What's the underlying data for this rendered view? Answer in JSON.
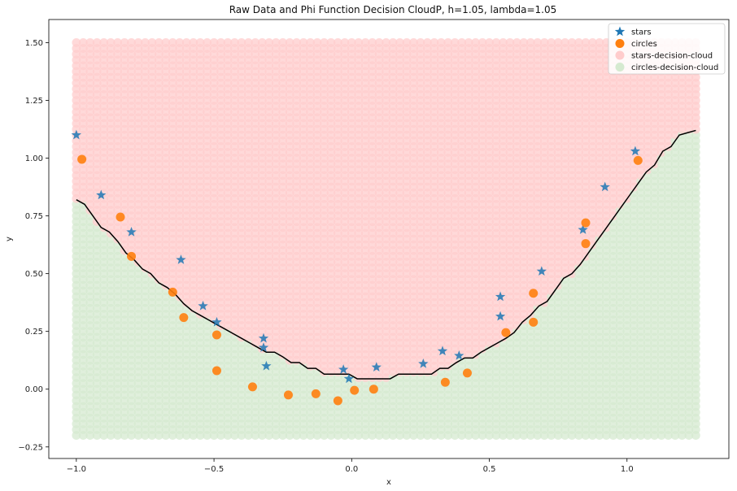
{
  "chart_data": {
    "type": "scatter",
    "title": "Raw Data and Phi Function Decision CloudP, h=1.05, lambda=1.05",
    "xlabel": "x",
    "ylabel": "y",
    "xlim": [
      -1.1,
      1.37
    ],
    "ylim": [
      -0.3,
      1.6
    ],
    "xticks": [
      -1.0,
      -0.5,
      0.0,
      0.5,
      1.0
    ],
    "xtick_labels": [
      "−1.0",
      "−0.5",
      "0.0",
      "0.5",
      "1.0"
    ],
    "yticks": [
      -0.25,
      0.0,
      0.25,
      0.5,
      0.75,
      1.0,
      1.25,
      1.5
    ],
    "ytick_labels": [
      "−0.25",
      "0.00",
      "0.25",
      "0.50",
      "0.75",
      "1.00",
      "1.25",
      "1.50"
    ],
    "grid": false,
    "legend_position": "top-right",
    "legend": [
      {
        "label": "stars",
        "marker": "star",
        "color": "#1f77b4"
      },
      {
        "label": "circles",
        "marker": "circle",
        "color": "#ff7f0e"
      },
      {
        "label": "stars-decision-cloud",
        "marker": "circle",
        "color": "#ffcccc"
      },
      {
        "label": "circles-decision-cloud",
        "marker": "circle",
        "color": "#d5ead0"
      }
    ],
    "cloud": {
      "x_range": [
        -1.0,
        1.25
      ],
      "y_range": [
        -0.2,
        1.5
      ],
      "x_step": 0.025,
      "y_step": 0.025,
      "stars_color": "#ffcccc",
      "circles_color": "#d5ead0"
    },
    "boundary": {
      "x": [
        -1.0,
        -0.97,
        -0.94,
        -0.91,
        -0.88,
        -0.85,
        -0.82,
        -0.79,
        -0.76,
        -0.73,
        -0.7,
        -0.67,
        -0.64,
        -0.61,
        -0.58,
        -0.55,
        -0.52,
        -0.49,
        -0.46,
        -0.43,
        -0.4,
        -0.37,
        -0.34,
        -0.31,
        -0.28,
        -0.25,
        -0.22,
        -0.19,
        -0.16,
        -0.13,
        -0.1,
        -0.07,
        -0.04,
        -0.01,
        0.02,
        0.05,
        0.08,
        0.11,
        0.14,
        0.17,
        0.2,
        0.23,
        0.26,
        0.29,
        0.32,
        0.35,
        0.38,
        0.41,
        0.44,
        0.47,
        0.5,
        0.53,
        0.56,
        0.59,
        0.62,
        0.65,
        0.68,
        0.71,
        0.74,
        0.77,
        0.8,
        0.83,
        0.86,
        0.89,
        0.92,
        0.95,
        0.98,
        1.01,
        1.04,
        1.07,
        1.1,
        1.13,
        1.16,
        1.19,
        1.22,
        1.25
      ],
      "y": [
        0.82,
        0.8,
        0.75,
        0.7,
        0.68,
        0.64,
        0.59,
        0.56,
        0.52,
        0.5,
        0.46,
        0.44,
        0.41,
        0.37,
        0.34,
        0.32,
        0.3,
        0.28,
        0.26,
        0.24,
        0.22,
        0.2,
        0.18,
        0.16,
        0.16,
        0.14,
        0.115,
        0.115,
        0.09,
        0.09,
        0.065,
        0.065,
        0.065,
        0.065,
        0.045,
        0.045,
        0.045,
        0.045,
        0.045,
        0.065,
        0.065,
        0.065,
        0.065,
        0.065,
        0.09,
        0.09,
        0.115,
        0.135,
        0.135,
        0.16,
        0.18,
        0.2,
        0.22,
        0.245,
        0.29,
        0.32,
        0.36,
        0.38,
        0.43,
        0.48,
        0.5,
        0.54,
        0.59,
        0.64,
        0.69,
        0.74,
        0.79,
        0.84,
        0.89,
        0.94,
        0.97,
        1.03,
        1.05,
        1.1,
        1.11,
        1.12
      ]
    },
    "series": [
      {
        "name": "stars",
        "marker": "star",
        "color": "#1f77b4",
        "x": [
          -1.0,
          -0.91,
          -0.8,
          -0.62,
          -0.54,
          -0.49,
          -0.32,
          -0.32,
          -0.31,
          -0.03,
          -0.01,
          0.09,
          0.26,
          0.33,
          0.39,
          0.54,
          0.54,
          0.69,
          0.84,
          0.92,
          1.03
        ],
        "y": [
          1.1,
          0.84,
          0.68,
          0.56,
          0.36,
          0.29,
          0.22,
          0.18,
          0.1,
          0.085,
          0.045,
          0.095,
          0.11,
          0.165,
          0.145,
          0.4,
          0.315,
          0.51,
          0.69,
          0.875,
          1.03
        ]
      },
      {
        "name": "circles",
        "marker": "circle",
        "color": "#ff7f0e",
        "x": [
          -0.98,
          -0.84,
          -0.8,
          -0.65,
          -0.61,
          -0.49,
          -0.49,
          -0.36,
          -0.23,
          -0.13,
          -0.05,
          0.01,
          0.08,
          0.34,
          0.42,
          0.56,
          0.66,
          0.66,
          0.85,
          0.85,
          1.04
        ],
        "y": [
          0.995,
          0.745,
          0.575,
          0.42,
          0.31,
          0.235,
          0.08,
          0.01,
          -0.025,
          -0.02,
          -0.05,
          -0.005,
          0.0,
          0.03,
          0.07,
          0.245,
          0.415,
          0.29,
          0.72,
          0.63,
          0.99
        ]
      }
    ]
  }
}
